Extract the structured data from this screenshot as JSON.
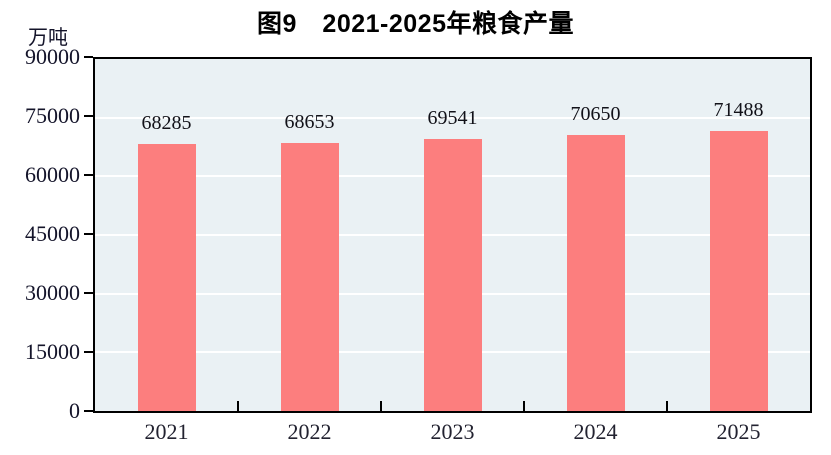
{
  "chart_data": {
    "type": "bar",
    "title": "图9　2021-2025年粮食产量",
    "unit_label": "万吨",
    "xlabel": "",
    "ylabel": "万吨",
    "categories": [
      "2021",
      "2022",
      "2023",
      "2024",
      "2025"
    ],
    "values": [
      68285,
      68653,
      69541,
      70650,
      71488
    ],
    "value_labels": [
      "68285",
      "68653",
      "69541",
      "70650",
      "71488"
    ],
    "ytick_labels": [
      "0",
      "15000",
      "30000",
      "45000",
      "60000",
      "75000",
      "90000"
    ],
    "yticks": [
      0,
      15000,
      30000,
      45000,
      60000,
      75000,
      90000
    ],
    "ylim": [
      0,
      90000
    ],
    "grid": true,
    "legend_position": "none",
    "colors": {
      "bar": "#fc7e7e",
      "plot_bg": "#eaf1f4",
      "gridline": "#ffffff",
      "axis": "#000000",
      "text": "#14142a"
    }
  }
}
